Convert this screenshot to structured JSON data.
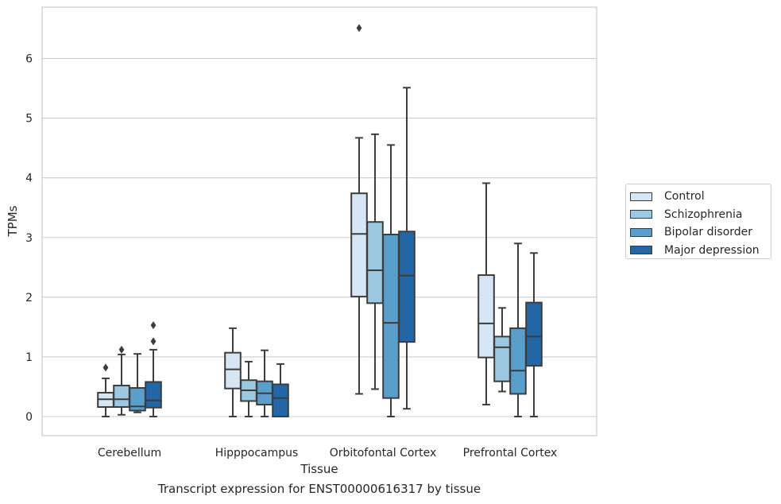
{
  "chart_data": {
    "type": "box",
    "caption": "Transcript expression for ENST00000616317 by tissue",
    "xlabel": "Tissue",
    "ylabel": "TPMs",
    "ylim": [
      -0.32,
      6.85
    ],
    "yticks": [
      0,
      1,
      2,
      3,
      4,
      5,
      6
    ],
    "grid": "horizontal",
    "legend_position": "right",
    "categories": [
      "Cerebellum",
      "Hipppocampus",
      "Orbitofontal Cortex",
      "Prefrontal Cortex"
    ],
    "series": [
      {
        "name": "Control",
        "color": "#d6e6f4",
        "boxes": [
          {
            "whislo": 0.0,
            "q1": 0.16,
            "med": 0.29,
            "q3": 0.4,
            "whishi": 0.64,
            "fliers": [
              0.82
            ]
          },
          {
            "whislo": 0.0,
            "q1": 0.47,
            "med": 0.79,
            "q3": 1.07,
            "whishi": 1.48,
            "fliers": []
          },
          {
            "whislo": 0.38,
            "q1": 2.01,
            "med": 3.06,
            "q3": 3.74,
            "whishi": 4.67,
            "fliers": [
              6.51
            ]
          },
          {
            "whislo": 0.2,
            "q1": 0.99,
            "med": 1.56,
            "q3": 2.37,
            "whishi": 3.91,
            "fliers": []
          }
        ]
      },
      {
        "name": "Schizophrenia",
        "color": "#9cc9e1",
        "boxes": [
          {
            "whislo": 0.03,
            "q1": 0.16,
            "med": 0.29,
            "q3": 0.52,
            "whishi": 1.04,
            "fliers": [
              1.12
            ]
          },
          {
            "whislo": 0.0,
            "q1": 0.26,
            "med": 0.44,
            "q3": 0.61,
            "whishi": 0.92,
            "fliers": []
          },
          {
            "whislo": 0.46,
            "q1": 1.9,
            "med": 2.45,
            "q3": 3.26,
            "whishi": 4.73,
            "fliers": []
          },
          {
            "whislo": 0.42,
            "q1": 0.59,
            "med": 1.16,
            "q3": 1.34,
            "whishi": 1.82,
            "fliers": []
          }
        ]
      },
      {
        "name": "Bipolar disorder",
        "color": "#5a9ecc",
        "boxes": [
          {
            "whislo": 0.07,
            "q1": 0.1,
            "med": 0.17,
            "q3": 0.48,
            "whishi": 1.05,
            "fliers": []
          },
          {
            "whislo": 0.0,
            "q1": 0.2,
            "med": 0.39,
            "q3": 0.59,
            "whishi": 1.11,
            "fliers": []
          },
          {
            "whislo": 0.0,
            "q1": 0.31,
            "med": 1.57,
            "q3": 3.05,
            "whishi": 4.55,
            "fliers": []
          },
          {
            "whislo": 0.0,
            "q1": 0.38,
            "med": 0.77,
            "q3": 1.48,
            "whishi": 2.9,
            "fliers": []
          }
        ]
      },
      {
        "name": "Major depression",
        "color": "#2266a6",
        "boxes": [
          {
            "whislo": 0.0,
            "q1": 0.15,
            "med": 0.27,
            "q3": 0.58,
            "whishi": 1.12,
            "fliers": [
              1.26,
              1.53
            ]
          },
          {
            "whislo": 0.0,
            "q1": 0.0,
            "med": 0.31,
            "q3": 0.54,
            "whishi": 0.88,
            "fliers": []
          },
          {
            "whislo": 0.13,
            "q1": 1.25,
            "med": 2.36,
            "q3": 3.1,
            "whishi": 5.51,
            "fliers": []
          },
          {
            "whislo": 0.0,
            "q1": 0.85,
            "med": 1.34,
            "q3": 1.91,
            "whishi": 2.74,
            "fliers": []
          }
        ]
      }
    ]
  }
}
